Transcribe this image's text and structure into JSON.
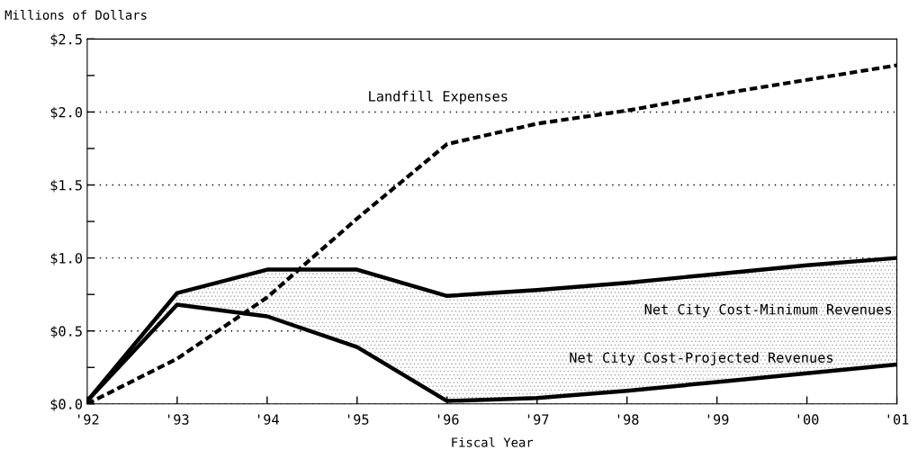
{
  "chart_data": {
    "type": "line",
    "ylabel": "Millions of Dollars",
    "xlabel": "Fiscal Year",
    "categories": [
      "'92",
      "'93",
      "'94",
      "'95",
      "'96",
      "'97",
      "'98",
      "'99",
      "'00",
      "'01"
    ],
    "series": [
      {
        "name": "Landfill Expenses",
        "color": "#000000",
        "line_style": "dashed",
        "values": [
          0.0,
          0.31,
          0.73,
          1.27,
          1.78,
          1.92,
          2.01,
          2.12,
          2.22,
          2.32
        ]
      },
      {
        "name": "Net City Cost-Minimum Revenues",
        "color": "#000000",
        "line_style": "solid",
        "values": [
          0.02,
          0.76,
          0.92,
          0.92,
          0.74,
          0.78,
          0.83,
          0.89,
          0.95,
          1.0
        ],
        "upper": [
          0.02,
          0.76,
          0.92,
          0.92,
          0.74,
          0.78,
          0.83,
          0.89,
          0.95,
          1.0
        ],
        "lower": [
          0.02,
          0.68,
          0.6,
          0.39,
          0.02,
          0.04,
          0.09,
          0.15,
          0.21,
          0.27
        ]
      },
      {
        "name": "Net City Cost-Projected Revenues",
        "color": "#000000",
        "line_style": "solid",
        "values": [
          0.02,
          0.68,
          0.6,
          0.39,
          0.02,
          0.04,
          0.09,
          0.15,
          0.21,
          0.27
        ]
      }
    ],
    "ylim": [
      0,
      2.5
    ],
    "yticks": [
      {
        "value": 0,
        "label": "$0.0"
      },
      {
        "value": 0.25,
        "label": null
      },
      {
        "value": 0.5,
        "label": "$0.5"
      },
      {
        "value": 0.75,
        "label": null
      },
      {
        "value": 1.0,
        "label": "$1.0"
      },
      {
        "value": 1.25,
        "label": null
      },
      {
        "value": 1.5,
        "label": "$1.5"
      },
      {
        "value": 1.75,
        "label": null
      },
      {
        "value": 2.0,
        "label": "$2.0"
      },
      {
        "value": 2.25,
        "label": null
      },
      {
        "value": 2.5,
        "label": "$2.5"
      }
    ],
    "grid": "y",
    "legend": false,
    "marker": "none"
  }
}
